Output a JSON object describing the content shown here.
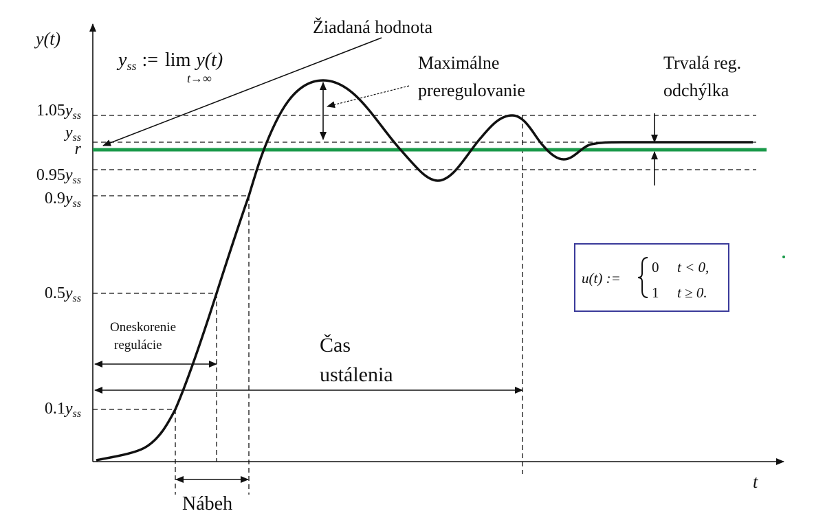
{
  "axes": {
    "y_label": "y(t)",
    "x_label": "t"
  },
  "setpoint_label": "Žiadaná hodnota",
  "definition": {
    "lhs": "y",
    "lhs_sub": "ss",
    "op": ":=",
    "lim": "lim",
    "lim_sub": "t→∞",
    "rhs": "y(t)"
  },
  "y_levels": [
    {
      "coef": "1.05",
      "var": "y",
      "sub": "ss"
    },
    {
      "var": "y",
      "sub": "ss"
    },
    {
      "var": "r"
    },
    {
      "coef": "0.95",
      "var": "y",
      "sub": "ss"
    },
    {
      "coef": "0.9",
      "var": "y",
      "sub": "ss"
    },
    {
      "coef": "0.5",
      "var": "y",
      "sub": "ss"
    },
    {
      "coef": "0.1",
      "var": "y",
      "sub": "ss"
    }
  ],
  "overshoot": [
    "Maximálne",
    "preregulovanie"
  ],
  "steady_state_error": [
    "Trvalá reg.",
    "odchýlka"
  ],
  "delay": [
    "Oneskorenie",
    "regulácie"
  ],
  "settling_time": [
    "Čas",
    "ustálenia"
  ],
  "rise_time": "Nábeh",
  "step_input": {
    "lhs": "u(t) :=",
    "cases": [
      {
        "value": "0",
        "condition": "t < 0,"
      },
      {
        "value": "1",
        "condition": "t ≥ 0."
      }
    ]
  }
}
